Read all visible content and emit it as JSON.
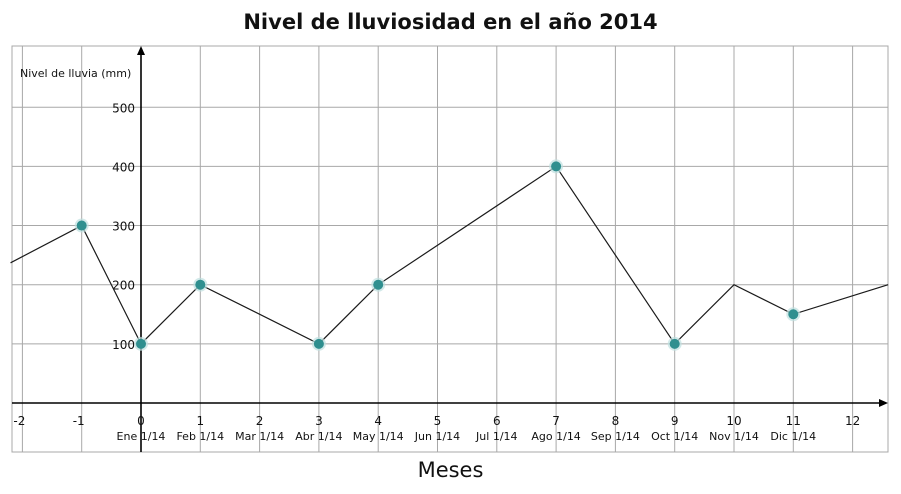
{
  "chart_data": {
    "type": "line",
    "title": "Nivel de lluviosidad en el año 2014",
    "xlabel": "Meses",
    "ylabel": "Nivel de lluvia (mm)",
    "xlim": [
      -2.2,
      12.6
    ],
    "ylim": [
      -30,
      580
    ],
    "x_ticks": [
      -2,
      -1,
      0,
      1,
      2,
      3,
      4,
      5,
      6,
      7,
      8,
      9,
      10,
      11,
      12
    ],
    "y_ticks": [
      100,
      200,
      300,
      400,
      500
    ],
    "month_labels": [
      {
        "x": 0,
        "label": "Ene 1/14"
      },
      {
        "x": 1,
        "label": "Feb 1/14"
      },
      {
        "x": 2,
        "label": "Mar 1/14"
      },
      {
        "x": 3,
        "label": "Abr 1/14"
      },
      {
        "x": 4,
        "label": "May 1/14"
      },
      {
        "x": 5,
        "label": "Jun 1/14"
      },
      {
        "x": 6,
        "label": "Jul 1/14"
      },
      {
        "x": 7,
        "label": "Ago 1/14"
      },
      {
        "x": 8,
        "label": "Sep 1/14"
      },
      {
        "x": 9,
        "label": "Oct 1/14"
      },
      {
        "x": 10,
        "label": "Nov 1/14"
      },
      {
        "x": 11,
        "label": "Dic 1/14"
      }
    ],
    "line": {
      "x": [
        -2.2,
        -1,
        0,
        1,
        3,
        4,
        7,
        9,
        10,
        11,
        12.6
      ],
      "y": [
        237,
        300,
        100,
        200,
        100,
        200,
        400,
        100,
        200,
        150,
        200
      ]
    },
    "markers": {
      "x": [
        -1,
        0,
        1,
        3,
        4,
        7,
        9,
        11
      ],
      "y": [
        300,
        100,
        200,
        100,
        200,
        400,
        100,
        150
      ]
    },
    "grid": true,
    "colors": {
      "line": "#1a1a1a",
      "marker": "#2f8f8f",
      "grid": "#a8a8a8",
      "axis": "#000000"
    }
  }
}
